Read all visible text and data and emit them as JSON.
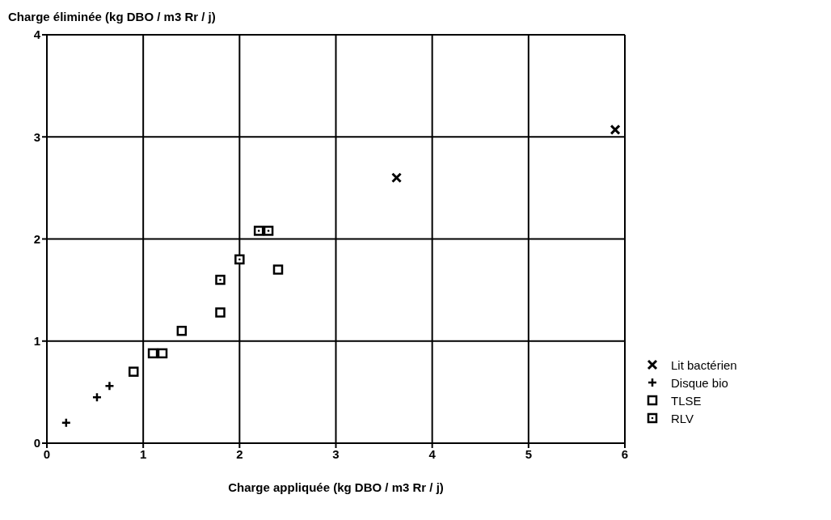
{
  "chart_data": {
    "type": "scatter",
    "xlabel": "Charge appliquée (kg DBO / m3 Rr / j)",
    "ylabel": "Charge éliminée (kg DBO / m3 Rr / j)",
    "xlim": [
      0,
      6
    ],
    "xticks": [
      0,
      1,
      2,
      3,
      4,
      5,
      6
    ],
    "ylim": [
      0,
      4
    ],
    "yticks": [
      0,
      1,
      2,
      3,
      4
    ],
    "grid": true,
    "legend": "right",
    "series": [
      {
        "name": "Lit bactérien",
        "color": "#000000",
        "marker": "cross",
        "x": [
          3.63,
          5.9
        ],
        "values": [
          2.6,
          3.07
        ]
      },
      {
        "name": "Disque bio",
        "color": "#000000",
        "marker": "plus",
        "x": [
          0.2,
          0.52,
          0.65
        ],
        "values": [
          0.2,
          0.45,
          0.56
        ]
      },
      {
        "name": "TLSE",
        "color": "#000000",
        "marker": "square",
        "x": [
          0.9,
          1.1,
          1.2,
          1.4,
          1.8,
          2.4
        ],
        "values": [
          0.7,
          0.88,
          0.88,
          1.1,
          1.28,
          1.7
        ]
      },
      {
        "name": "RLV",
        "color": "#000000",
        "marker": "square-dot",
        "x": [
          1.8,
          2.0,
          2.2,
          2.3
        ],
        "values": [
          1.6,
          1.8,
          2.08,
          2.08
        ]
      }
    ]
  }
}
